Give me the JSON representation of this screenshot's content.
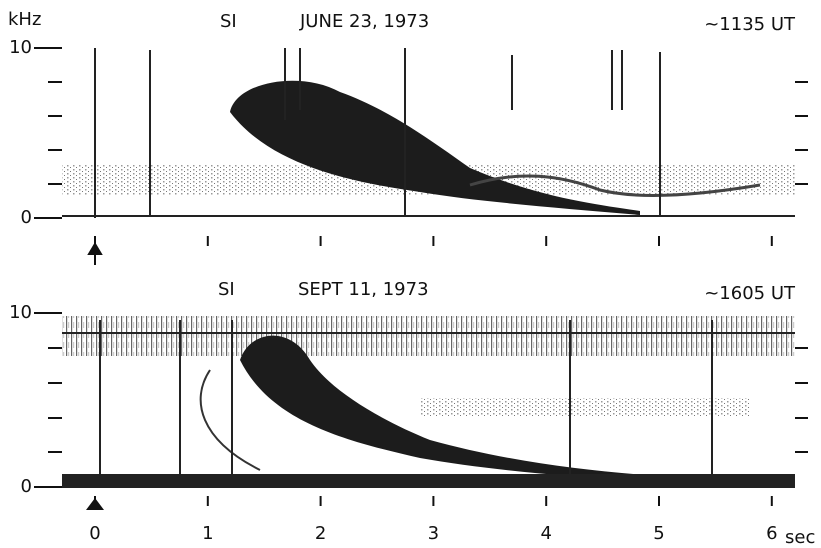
{
  "y_unit": "kHz",
  "panels": [
    {
      "station": "SI",
      "date": "JUNE 23, 1973",
      "time": "~1135 UT",
      "yticks": [
        0,
        10
      ]
    },
    {
      "station": "SI",
      "date": "SEPT 11, 1973",
      "time": "~1605 UT",
      "yticks": [
        0,
        10
      ]
    }
  ],
  "x_axis": {
    "ticks": [
      0,
      1,
      2,
      3,
      4,
      5,
      6
    ],
    "unit": "sec"
  }
}
